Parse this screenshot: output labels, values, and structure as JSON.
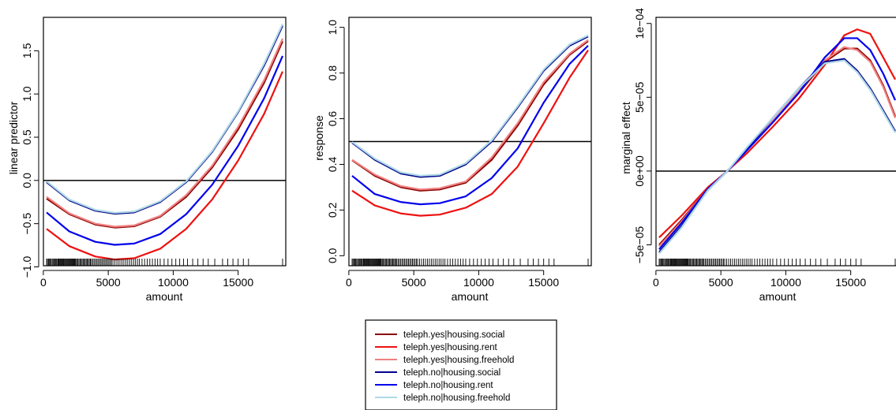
{
  "chart_data": [
    {
      "type": "line",
      "xlabel": "amount",
      "ylabel": "linear predictor",
      "xlim": [
        250,
        18424
      ],
      "ylim": [
        -0.95,
        1.85
      ],
      "x_ticks": [
        {
          "v": 0,
          "label": "0"
        },
        {
          "v": 5000,
          "label": "5000"
        },
        {
          "v": 10000,
          "label": "10000"
        },
        {
          "v": 15000,
          "label": "15000"
        }
      ],
      "y_ticks": [
        {
          "v": -1.0,
          "label": "−1.0"
        },
        {
          "v": -0.5,
          "label": "−0.5"
        },
        {
          "v": 0.0,
          "label": "0.0"
        },
        {
          "v": 0.5,
          "label": "0.5"
        },
        {
          "v": 1.0,
          "label": "1.0"
        },
        {
          "v": 1.5,
          "label": "1.5"
        }
      ],
      "ref_line": 0,
      "series": [
        {
          "name": "teleph.yes|housing.social",
          "color": "#8b0000",
          "x": [
            250,
            2000,
            4000,
            5500,
            7000,
            9000,
            11000,
            13000,
            15000,
            17000,
            18424
          ],
          "y": [
            -0.21,
            -0.39,
            -0.51,
            -0.545,
            -0.53,
            -0.42,
            -0.19,
            0.15,
            0.59,
            1.13,
            1.61
          ]
        },
        {
          "name": "teleph.yes|housing.rent",
          "color": "#ee1111",
          "x": [
            250,
            2000,
            4000,
            5500,
            7000,
            9000,
            11000,
            13000,
            15000,
            17000,
            18424
          ],
          "y": [
            -0.56,
            -0.76,
            -0.88,
            -0.915,
            -0.9,
            -0.79,
            -0.56,
            -0.22,
            0.23,
            0.77,
            1.26
          ]
        },
        {
          "name": "teleph.yes|housing.freehold",
          "color": "#f08080",
          "x": [
            250,
            2000,
            4000,
            5500,
            7000,
            9000,
            11000,
            13000,
            15000,
            17000,
            18424
          ],
          "y": [
            -0.19,
            -0.38,
            -0.5,
            -0.535,
            -0.52,
            -0.41,
            -0.17,
            0.17,
            0.62,
            1.16,
            1.64
          ]
        },
        {
          "name": "teleph.no|housing.social",
          "color": "#00008b",
          "x": [
            250,
            2000,
            4000,
            5500,
            7000,
            9000,
            11000,
            13000,
            15000,
            17000,
            18424
          ],
          "y": [
            -0.02,
            -0.23,
            -0.35,
            -0.385,
            -0.37,
            -0.25,
            -0.02,
            0.33,
            0.79,
            1.33,
            1.79
          ]
        },
        {
          "name": "teleph.no|housing.rent",
          "color": "#0000ee",
          "x": [
            250,
            2000,
            4000,
            5500,
            7000,
            9000,
            11000,
            13000,
            15000,
            17000,
            18424
          ],
          "y": [
            -0.37,
            -0.59,
            -0.71,
            -0.745,
            -0.73,
            -0.62,
            -0.39,
            -0.05,
            0.4,
            0.95,
            1.44
          ]
        },
        {
          "name": "teleph.no|housing.freehold",
          "color": "#add8e6",
          "x": [
            250,
            2000,
            4000,
            5500,
            7000,
            9000,
            11000,
            13000,
            15000,
            17000,
            18424
          ],
          "y": [
            -0.01,
            -0.22,
            -0.34,
            -0.375,
            -0.36,
            -0.24,
            -0.01,
            0.34,
            0.8,
            1.35,
            1.81
          ]
        }
      ]
    },
    {
      "type": "line",
      "xlabel": "amount",
      "ylabel": "response",
      "xlim": [
        250,
        18424
      ],
      "ylim": [
        -0.03,
        1.03
      ],
      "x_ticks": [
        {
          "v": 0,
          "label": "0"
        },
        {
          "v": 5000,
          "label": "5000"
        },
        {
          "v": 10000,
          "label": "10000"
        },
        {
          "v": 15000,
          "label": "15000"
        }
      ],
      "y_ticks": [
        {
          "v": 0.0,
          "label": "0.0"
        },
        {
          "v": 0.2,
          "label": "0.2"
        },
        {
          "v": 0.4,
          "label": "0.4"
        },
        {
          "v": 0.6,
          "label": "0.6"
        },
        {
          "v": 0.8,
          "label": "0.8"
        },
        {
          "v": 1.0,
          "label": "1.0"
        }
      ],
      "ref_line": 0.5,
      "series": [
        {
          "name": "teleph.yes|housing.social",
          "color": "#8b0000",
          "x": [
            250,
            2000,
            4000,
            5500,
            7000,
            9000,
            11000,
            13000,
            15000,
            17000,
            18424
          ],
          "y": [
            0.418,
            0.35,
            0.3,
            0.285,
            0.29,
            0.32,
            0.42,
            0.57,
            0.75,
            0.88,
            0.94
          ]
        },
        {
          "name": "teleph.yes|housing.rent",
          "color": "#ee1111",
          "x": [
            250,
            2000,
            4000,
            5500,
            7000,
            9000,
            11000,
            13000,
            15000,
            17000,
            18424
          ],
          "y": [
            0.285,
            0.22,
            0.185,
            0.175,
            0.18,
            0.21,
            0.27,
            0.39,
            0.58,
            0.78,
            0.9
          ]
        },
        {
          "name": "teleph.yes|housing.freehold",
          "color": "#f08080",
          "x": [
            250,
            2000,
            4000,
            5500,
            7000,
            9000,
            11000,
            13000,
            15000,
            17000,
            18424
          ],
          "y": [
            0.42,
            0.355,
            0.305,
            0.29,
            0.295,
            0.325,
            0.43,
            0.58,
            0.76,
            0.885,
            0.945
          ]
        },
        {
          "name": "teleph.no|housing.social",
          "color": "#00008b",
          "x": [
            250,
            2000,
            4000,
            5500,
            7000,
            9000,
            11000,
            13000,
            15000,
            17000,
            18424
          ],
          "y": [
            0.495,
            0.42,
            0.36,
            0.345,
            0.35,
            0.4,
            0.5,
            0.65,
            0.81,
            0.92,
            0.96
          ]
        },
        {
          "name": "teleph.no|housing.rent",
          "color": "#0000ee",
          "x": [
            250,
            2000,
            4000,
            5500,
            7000,
            9000,
            11000,
            13000,
            15000,
            17000,
            18424
          ],
          "y": [
            0.35,
            0.27,
            0.235,
            0.225,
            0.23,
            0.26,
            0.34,
            0.47,
            0.67,
            0.84,
            0.92
          ]
        },
        {
          "name": "teleph.no|housing.freehold",
          "color": "#add8e6",
          "x": [
            250,
            2000,
            4000,
            5500,
            7000,
            9000,
            11000,
            13000,
            15000,
            17000,
            18424
          ],
          "y": [
            0.498,
            0.425,
            0.365,
            0.35,
            0.355,
            0.405,
            0.505,
            0.655,
            0.815,
            0.925,
            0.965
          ]
        }
      ]
    },
    {
      "type": "line",
      "xlabel": "amount",
      "ylabel": "marginal effect",
      "xlim": [
        250,
        18424
      ],
      "ylim": [
        -6.2e-05,
        0.000102
      ],
      "x_ticks": [
        {
          "v": 0,
          "label": "0"
        },
        {
          "v": 5000,
          "label": "5000"
        },
        {
          "v": 10000,
          "label": "10000"
        },
        {
          "v": 15000,
          "label": "15000"
        }
      ],
      "y_ticks": [
        {
          "v": -5e-05,
          "label": "−5e−05"
        },
        {
          "v": 0,
          "label": "0e+00"
        },
        {
          "v": 5e-05,
          "label": "5e−05"
        },
        {
          "v": 0.0001,
          "label": "1e−04"
        }
      ],
      "ref_line": 0,
      "series": [
        {
          "name": "teleph.yes|housing.social",
          "color": "#8b0000",
          "x": [
            250,
            2000,
            4000,
            5500,
            7000,
            9000,
            11000,
            13000,
            14500,
            15500,
            16500,
            17500,
            18424
          ],
          "y": [
            -5e-05,
            -3.3e-05,
            -1.2e-05,
            0,
            1.4e-05,
            3.3e-05,
            5.3e-05,
            7.4e-05,
            8.3e-05,
            8.3e-05,
            7.5e-05,
            5.8e-05,
            3.7e-05
          ]
        },
        {
          "name": "teleph.yes|housing.rent",
          "color": "#ee1111",
          "x": [
            250,
            2000,
            4000,
            5500,
            7000,
            9000,
            11000,
            13000,
            14500,
            15500,
            16500,
            17500,
            18424
          ],
          "y": [
            -4.5e-05,
            -3e-05,
            -1.1e-05,
            0,
            1.2e-05,
            3e-05,
            4.9e-05,
            7.2e-05,
            9.2e-05,
            9.6e-05,
            9.3e-05,
            7.7e-05,
            6.2e-05
          ]
        },
        {
          "name": "teleph.yes|housing.freehold",
          "color": "#f08080",
          "x": [
            250,
            2000,
            4000,
            5500,
            7000,
            9000,
            11000,
            13000,
            14500,
            15500,
            16500,
            17500,
            18424
          ],
          "y": [
            -5.1e-05,
            -3.4e-05,
            -1.2e-05,
            0,
            1.4e-05,
            3.4e-05,
            5.4e-05,
            7.5e-05,
            8.4e-05,
            8.2e-05,
            7.4e-05,
            5.7e-05,
            3.6e-05
          ]
        },
        {
          "name": "teleph.no|housing.social",
          "color": "#00008b",
          "x": [
            250,
            2000,
            4000,
            5500,
            7000,
            9000,
            11000,
            13000,
            14500,
            15500,
            16500,
            17500,
            18424
          ],
          "y": [
            -5.5e-05,
            -3.7e-05,
            -1.3e-05,
            0,
            1.5e-05,
            3.6e-05,
            5.6e-05,
            7.4e-05,
            7.6e-05,
            6.8e-05,
            5.6e-05,
            4.1e-05,
            2.7e-05
          ]
        },
        {
          "name": "teleph.no|housing.rent",
          "color": "#0000ee",
          "x": [
            250,
            2000,
            4000,
            5500,
            7000,
            9000,
            11000,
            13000,
            14500,
            15500,
            16500,
            17500,
            18424
          ],
          "y": [
            -5.3e-05,
            -3.5e-05,
            -1.2e-05,
            0,
            1.4e-05,
            3.3e-05,
            5.3e-05,
            7.7e-05,
            9e-05,
            9e-05,
            8.2e-05,
            6.6e-05,
            4.8e-05
          ]
        },
        {
          "name": "teleph.no|housing.freehold",
          "color": "#add8e6",
          "x": [
            250,
            2000,
            4000,
            5500,
            7000,
            9000,
            11000,
            13000,
            14500,
            15500,
            16500,
            17500,
            18424
          ],
          "y": [
            -5.6e-05,
            -3.8e-05,
            -1.3e-05,
            0,
            1.6e-05,
            3.6e-05,
            5.6e-05,
            7.3e-05,
            7.5e-05,
            6.7e-05,
            5.5e-05,
            4e-05,
            2.6e-05
          ]
        }
      ]
    }
  ],
  "rug_x": [
    250,
    320,
    400,
    450,
    520,
    600,
    680,
    750,
    820,
    900,
    960,
    1020,
    1100,
    1150,
    1200,
    1260,
    1320,
    1380,
    1440,
    1500,
    1550,
    1600,
    1660,
    1720,
    1780,
    1840,
    1900,
    1960,
    2020,
    2080,
    2140,
    2200,
    2260,
    2320,
    2380,
    2440,
    2500,
    2580,
    2660,
    2740,
    2820,
    2900,
    2980,
    3060,
    3140,
    3220,
    3300,
    3380,
    3460,
    3540,
    3620,
    3700,
    3800,
    3900,
    4000,
    4100,
    4200,
    4300,
    4400,
    4500,
    4600,
    4700,
    4800,
    4900,
    5000,
    5100,
    5200,
    5300,
    5450,
    5600,
    5750,
    5900,
    6050,
    6200,
    6350,
    6500,
    6650,
    6800,
    6950,
    7100,
    7250,
    7400,
    7600,
    7800,
    8000,
    8200,
    8400,
    8600,
    8800,
    9000,
    9300,
    9600,
    9900,
    10200,
    10500,
    10800,
    11100,
    11500,
    11900,
    12300,
    12700,
    13200,
    13800,
    14200,
    14600,
    15000,
    15400,
    15800,
    18424
  ],
  "legend": {
    "entries": [
      {
        "label": "teleph.yes|housing.social",
        "color": "#8b0000"
      },
      {
        "label": "teleph.yes|housing.rent",
        "color": "#ee1111"
      },
      {
        "label": "teleph.yes|housing.freehold",
        "color": "#f08080"
      },
      {
        "label": "teleph.no|housing.social",
        "color": "#00008b"
      },
      {
        "label": "teleph.no|housing.rent",
        "color": "#0000ee"
      },
      {
        "label": "teleph.no|housing.freehold",
        "color": "#add8e6"
      }
    ]
  }
}
